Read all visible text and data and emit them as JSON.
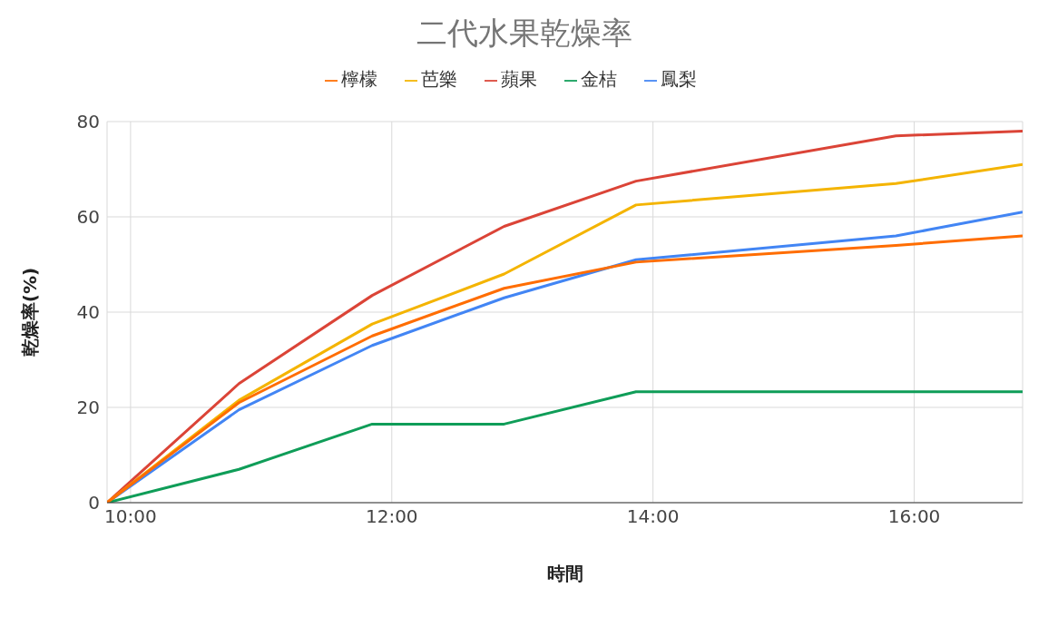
{
  "chart_data": {
    "type": "line",
    "title": "二代水果乾燥率",
    "xlabel": "時間",
    "ylabel": "乾燥率(%)",
    "x": [
      9.82,
      10.83,
      11.85,
      12.86,
      13.87,
      15.86,
      16.83
    ],
    "series": [
      {
        "name": "鳳梨",
        "color": "#4285f4",
        "values": [
          0,
          19.5,
          33,
          43,
          51,
          56,
          61
        ]
      },
      {
        "name": "蘋果",
        "color": "#db4437",
        "values": [
          0,
          25,
          43.5,
          58,
          67.5,
          77,
          78
        ]
      },
      {
        "name": "芭樂",
        "color": "#f4b400",
        "values": [
          0,
          21.5,
          37.5,
          48,
          62.5,
          67,
          71
        ]
      },
      {
        "name": "金桔",
        "color": "#0f9d58",
        "values": [
          0,
          7,
          16.5,
          16.5,
          23.3,
          23.3,
          23.3
        ]
      },
      {
        "name": "檸檬",
        "color": "#ff6d01",
        "values": [
          0,
          21,
          35,
          45,
          50.5,
          54,
          56
        ]
      }
    ],
    "xlim": [
      9.82,
      16.83
    ],
    "xticks": [
      {
        "value": 10,
        "label": "10:00"
      },
      {
        "value": 12,
        "label": "12:00"
      },
      {
        "value": 14,
        "label": "14:00"
      },
      {
        "value": 16,
        "label": "16:00"
      }
    ],
    "ylim": [
      0,
      80
    ],
    "yticks": [
      0,
      20,
      40,
      60,
      80
    ],
    "grid": true,
    "legend": "top",
    "marker": "none",
    "line_style": "solid"
  }
}
